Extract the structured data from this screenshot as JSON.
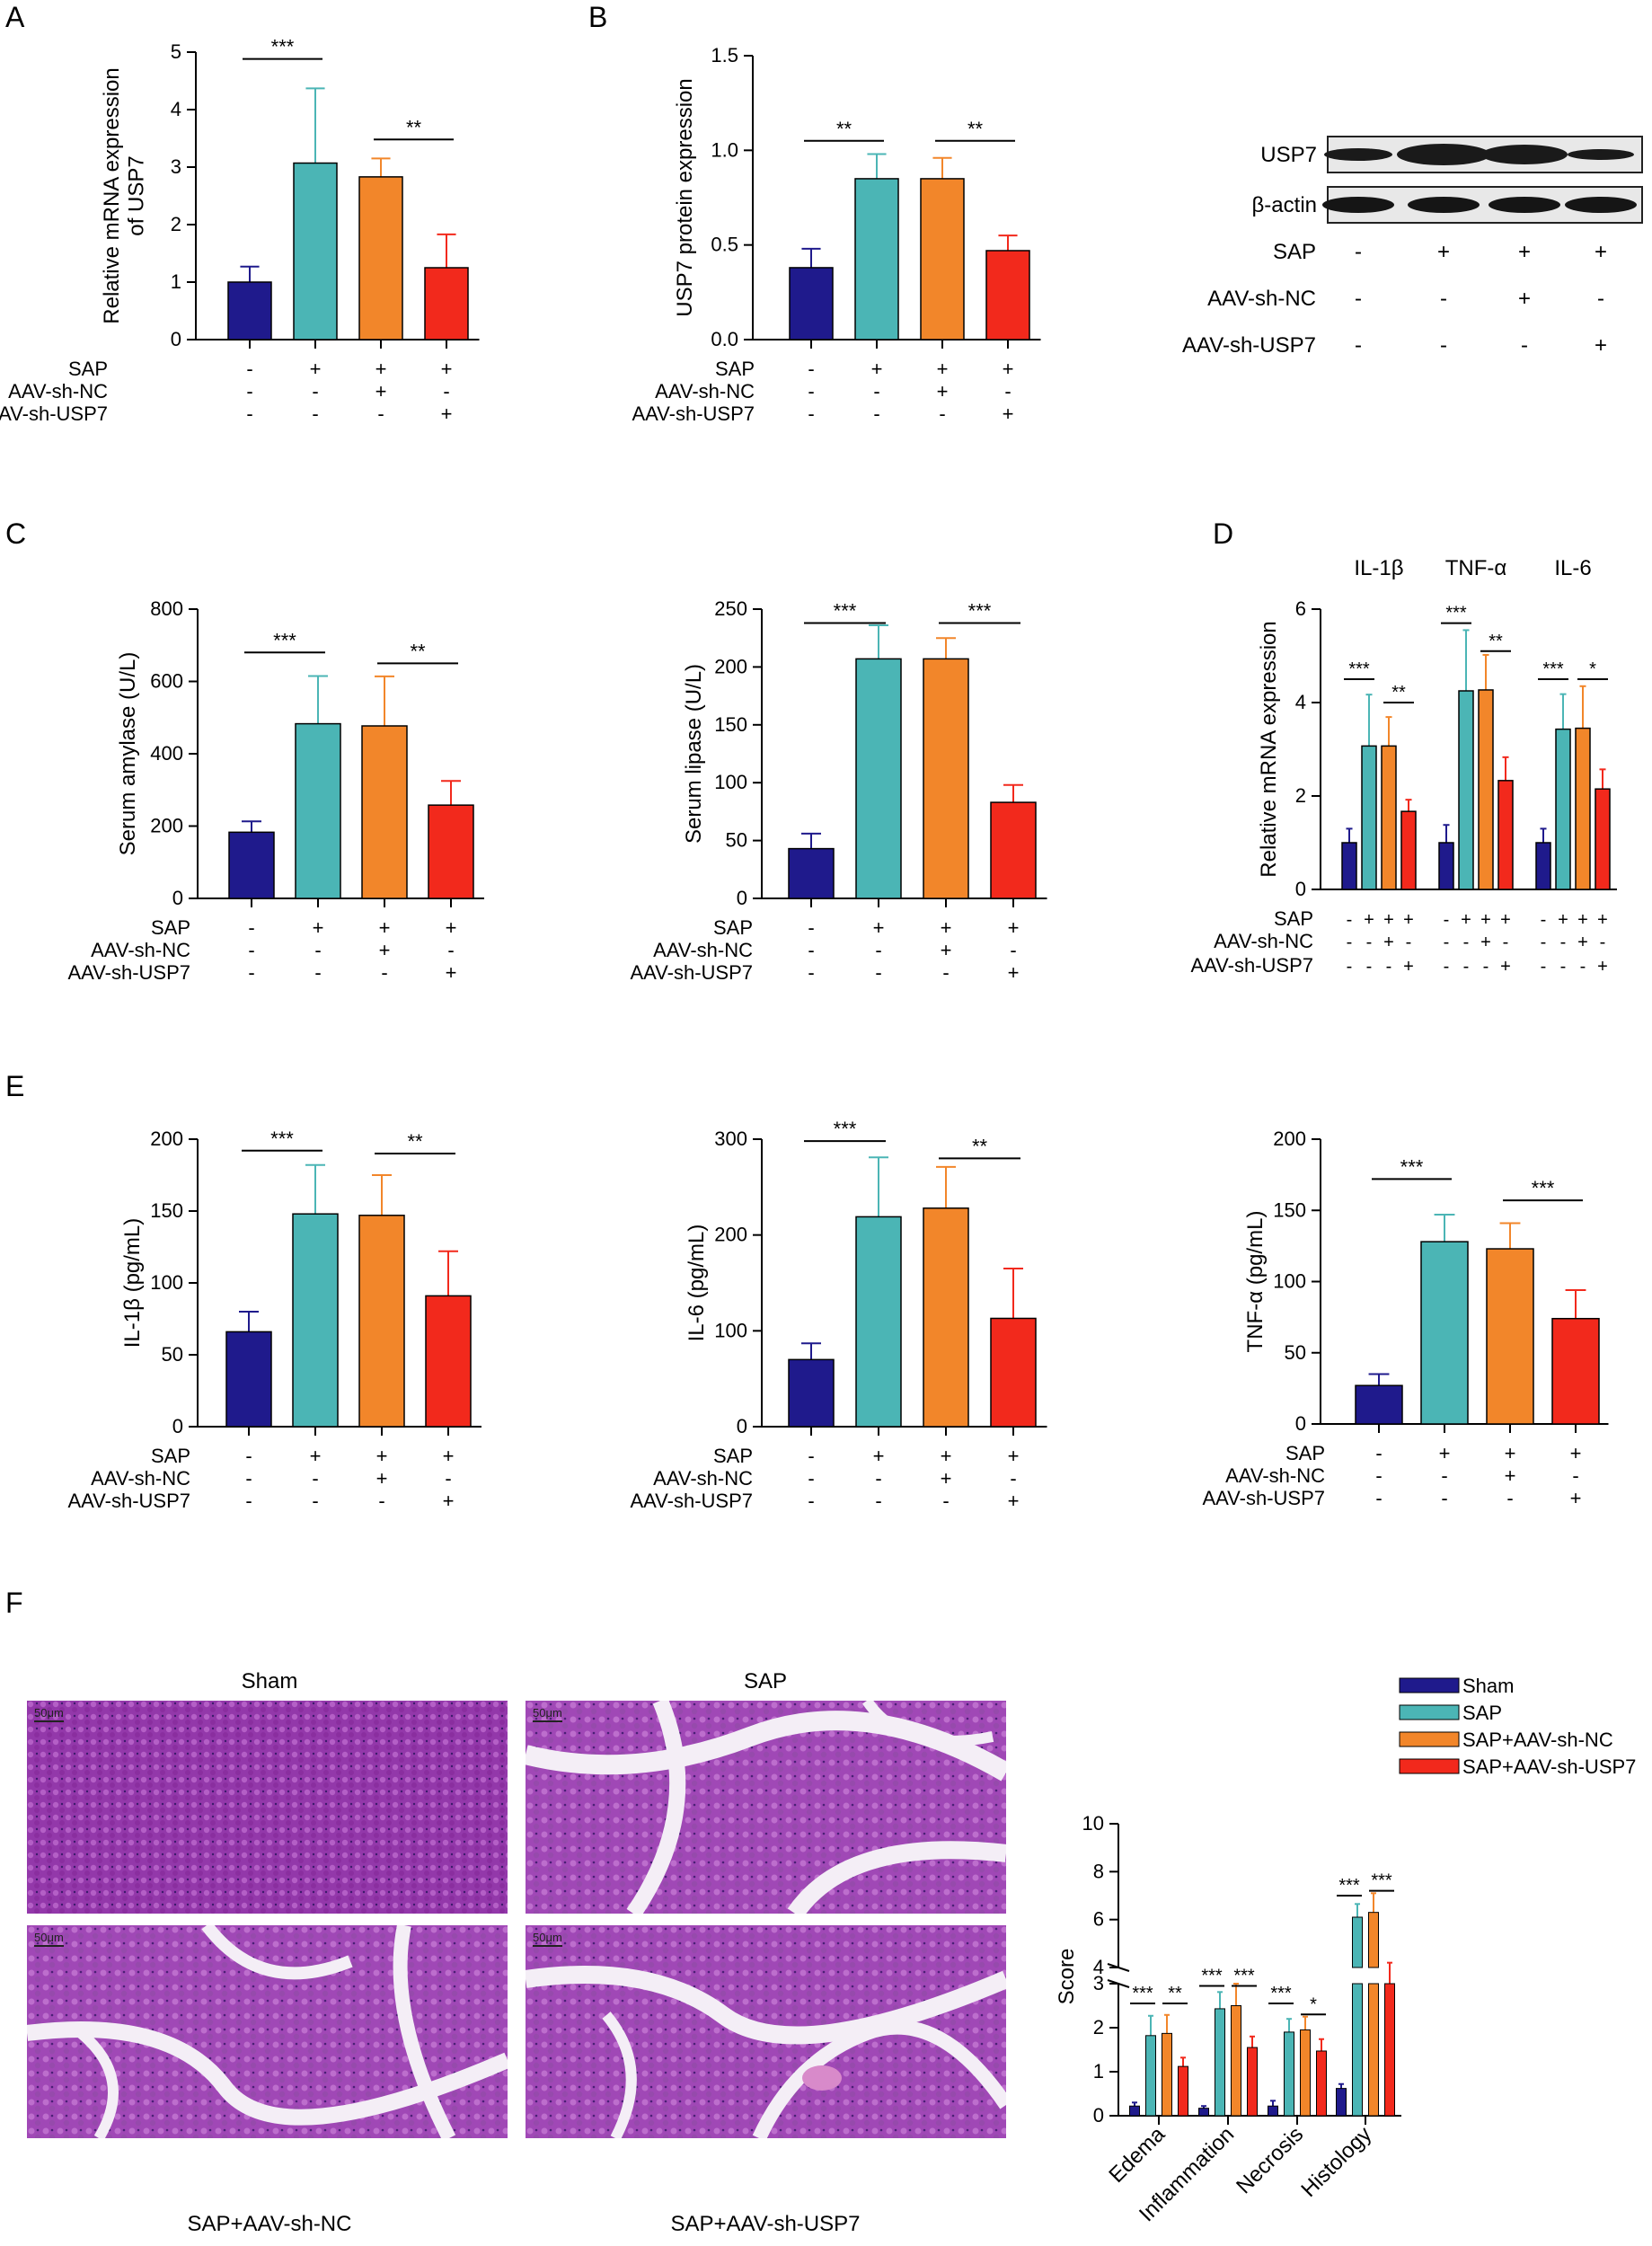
{
  "colors": {
    "sham": "#1f1a8c",
    "sap": "#4bb5b5",
    "nc": "#f2862a",
    "sh": "#f2291c"
  },
  "panel_letters": [
    "A",
    "B",
    "C",
    "D",
    "E",
    "F"
  ],
  "row_labels": {
    "sap": "SAP",
    "nc": "AAV-sh-NC",
    "sh": "AAV-sh-USP7"
  },
  "groups": [
    {
      "sap": "-",
      "nc": "-",
      "sh": "-"
    },
    {
      "sap": "+",
      "nc": "-",
      "sh": "-"
    },
    {
      "sap": "+",
      "nc": "+",
      "sh": "-"
    },
    {
      "sap": "+",
      "nc": "-",
      "sh": "+"
    }
  ],
  "western_blot": {
    "bands": [
      "USP7",
      "β-actin"
    ],
    "rows": [
      {
        "label": "SAP",
        "signs": [
          "-",
          "+",
          "+",
          "+"
        ]
      },
      {
        "label": "AAV-sh-NC",
        "signs": [
          "-",
          "-",
          "+",
          "-"
        ]
      },
      {
        "label": "AAV-sh-USP7",
        "signs": [
          "-",
          "-",
          "-",
          "+"
        ]
      }
    ]
  },
  "histology": {
    "labels": [
      "Sham",
      "SAP",
      "SAP+AAV-sh-NC",
      "SAP+AAV-sh-USP7"
    ],
    "scale": "50μm"
  },
  "legend": [
    "Sham",
    "SAP",
    "SAP+AAV-sh-NC",
    "SAP+AAV-sh-USP7"
  ],
  "chart_data": [
    {
      "id": "A",
      "type": "bar",
      "ylabel": "Relative mRNA expression of USP7",
      "ylim": [
        0,
        5
      ],
      "ticks": [
        0,
        1,
        2,
        3,
        4,
        5
      ],
      "tick_labels": [
        "0",
        "1",
        "2",
        "3",
        "4",
        "5"
      ],
      "values": [
        1.0,
        3.07,
        2.83,
        1.25
      ],
      "errors": [
        0.27,
        1.3,
        0.32,
        0.58
      ],
      "sig": [
        {
          "from": 0,
          "to": 1,
          "label": "***",
          "level": 4.88
        },
        {
          "from": 2,
          "to": 3,
          "label": "**",
          "level": 3.48
        }
      ]
    },
    {
      "id": "B",
      "type": "bar",
      "ylabel": "USP7 protein expression",
      "ylim": [
        0,
        1.5
      ],
      "ticks": [
        0,
        0.5,
        1.0,
        1.5
      ],
      "tick_labels": [
        "0.0",
        "0.5",
        "1.0",
        "1.5"
      ],
      "values": [
        0.38,
        0.85,
        0.85,
        0.47
      ],
      "errors": [
        0.1,
        0.13,
        0.11,
        0.08
      ],
      "sig": [
        {
          "from": 0,
          "to": 1,
          "label": "**",
          "level": 1.05
        },
        {
          "from": 2,
          "to": 3,
          "label": "**",
          "level": 1.05
        }
      ]
    },
    {
      "id": "C1",
      "type": "bar",
      "ylabel": "Serum amylase (U/L)",
      "ylim": [
        0,
        800
      ],
      "ticks": [
        0,
        200,
        400,
        600,
        800
      ],
      "tick_labels": [
        "0",
        "200",
        "400",
        "600",
        "800"
      ],
      "values": [
        183,
        483,
        477,
        258
      ],
      "errors": [
        30,
        132,
        137,
        67
      ],
      "sig": [
        {
          "from": 0,
          "to": 1,
          "label": "***",
          "level": 680
        },
        {
          "from": 2,
          "to": 3,
          "label": "**",
          "level": 650
        }
      ]
    },
    {
      "id": "C2",
      "type": "bar",
      "ylabel": "Serum lipase (U/L)",
      "ylim": [
        0,
        250
      ],
      "ticks": [
        0,
        50,
        100,
        150,
        200,
        250
      ],
      "tick_labels": [
        "0",
        "50",
        "100",
        "150",
        "200",
        "250"
      ],
      "values": [
        43,
        207,
        207,
        83
      ],
      "errors": [
        13,
        29,
        18,
        15
      ],
      "sig": [
        {
          "from": 0,
          "to": 1,
          "label": "***",
          "level": 238
        },
        {
          "from": 2,
          "to": 3,
          "label": "***",
          "level": 238
        }
      ]
    },
    {
      "id": "D",
      "type": "bar",
      "ylabel": "Relative mRNA expression",
      "ylim": [
        0,
        6
      ],
      "ticks": [
        0,
        2,
        4,
        6
      ],
      "tick_labels": [
        "0",
        "2",
        "4",
        "6"
      ],
      "categories": [
        "IL-1β",
        "TNF-α",
        "IL-6"
      ],
      "series": [
        {
          "name": "Sham",
          "values": [
            1.0,
            1.0,
            1.0
          ],
          "errors": [
            0.3,
            0.38,
            0.3
          ]
        },
        {
          "name": "SAP",
          "values": [
            3.07,
            4.25,
            3.43
          ],
          "errors": [
            1.1,
            1.3,
            0.75
          ]
        },
        {
          "name": "SAP+AAV-sh-NC",
          "values": [
            3.07,
            4.27,
            3.45
          ],
          "errors": [
            0.62,
            0.75,
            0.9
          ]
        },
        {
          "name": "SAP+AAV-sh-USP7",
          "values": [
            1.67,
            2.33,
            2.15
          ],
          "errors": [
            0.25,
            0.5,
            0.42
          ]
        }
      ],
      "sig": [
        {
          "cat": 0,
          "from": 0,
          "to": 1,
          "label": "***",
          "level": 4.5
        },
        {
          "cat": 0,
          "from": 2,
          "to": 3,
          "label": "**",
          "level": 4.0
        },
        {
          "cat": 1,
          "from": 0,
          "to": 1,
          "label": "***",
          "level": 5.7
        },
        {
          "cat": 1,
          "from": 2,
          "to": 3,
          "label": "**",
          "level": 5.1
        },
        {
          "cat": 2,
          "from": 0,
          "to": 1,
          "label": "***",
          "level": 4.5
        },
        {
          "cat": 2,
          "from": 2,
          "to": 3,
          "label": "*",
          "level": 4.5
        }
      ]
    },
    {
      "id": "E1",
      "type": "bar",
      "ylabel": "IL-1β (pg/mL)",
      "ylim": [
        0,
        200
      ],
      "ticks": [
        0,
        50,
        100,
        150,
        200
      ],
      "tick_labels": [
        "0",
        "50",
        "100",
        "150",
        "200"
      ],
      "values": [
        66,
        148,
        147,
        91
      ],
      "errors": [
        14,
        34,
        28,
        31
      ],
      "sig": [
        {
          "from": 0,
          "to": 1,
          "label": "***",
          "level": 192
        },
        {
          "from": 2,
          "to": 3,
          "label": "**",
          "level": 190
        }
      ]
    },
    {
      "id": "E2",
      "type": "bar",
      "ylabel": "IL-6 (pg/mL)",
      "ylim": [
        0,
        300
      ],
      "ticks": [
        0,
        100,
        200,
        300
      ],
      "tick_labels": [
        "0",
        "100",
        "200",
        "300"
      ],
      "values": [
        70,
        219,
        228,
        113
      ],
      "errors": [
        17,
        62,
        43,
        52
      ],
      "sig": [
        {
          "from": 0,
          "to": 1,
          "label": "***",
          "level": 298
        },
        {
          "from": 2,
          "to": 3,
          "label": "**",
          "level": 280
        }
      ]
    },
    {
      "id": "E3",
      "type": "bar",
      "ylabel": "TNF-α (pg/mL)",
      "ylim": [
        0,
        200
      ],
      "ticks": [
        0,
        50,
        100,
        150,
        200
      ],
      "tick_labels": [
        "0",
        "50",
        "100",
        "150",
        "200"
      ],
      "values": [
        27,
        128,
        123,
        74
      ],
      "errors": [
        8,
        19,
        18,
        20
      ],
      "sig": [
        {
          "from": 0,
          "to": 1,
          "label": "***",
          "level": 172
        },
        {
          "from": 2,
          "to": 3,
          "label": "***",
          "level": 157
        }
      ]
    },
    {
      "id": "F",
      "type": "bar",
      "ylabel": "Score",
      "axis_break": true,
      "lower_ticks": [
        0,
        1,
        2,
        3
      ],
      "upper_ticks": [
        4,
        6,
        8,
        10
      ],
      "categories": [
        "Edema",
        "Inflammation",
        "Necrosis",
        "Histology"
      ],
      "series": [
        {
          "name": "Sham",
          "values": [
            0.22,
            0.17,
            0.22,
            0.62
          ],
          "errors": [
            0.08,
            0.05,
            0.12,
            0.1
          ]
        },
        {
          "name": "SAP",
          "values": [
            1.82,
            2.43,
            1.9,
            6.1
          ],
          "errors": [
            0.45,
            0.38,
            0.3,
            0.55
          ]
        },
        {
          "name": "SAP+AAV-sh-NC",
          "values": [
            1.87,
            2.5,
            1.95,
            6.3
          ],
          "errors": [
            0.42,
            0.55,
            0.3,
            0.8
          ]
        },
        {
          "name": "SAP+AAV-sh-USP7",
          "values": [
            1.12,
            1.55,
            1.47,
            3.9
          ],
          "errors": [
            0.2,
            0.25,
            0.27,
            0.3
          ]
        }
      ],
      "sig": [
        {
          "cat": 0,
          "from": 0,
          "to": 1,
          "label": "***",
          "level": 2.55
        },
        {
          "cat": 0,
          "from": 2,
          "to": 3,
          "label": "**",
          "level": 2.55
        },
        {
          "cat": 1,
          "from": 0,
          "to": 1,
          "label": "***",
          "level": 2.95
        },
        {
          "cat": 1,
          "from": 2,
          "to": 3,
          "label": "***",
          "level": 2.95
        },
        {
          "cat": 2,
          "from": 0,
          "to": 1,
          "label": "***",
          "level": 2.55
        },
        {
          "cat": 2,
          "from": 2,
          "to": 3,
          "label": "*",
          "level": 2.3
        },
        {
          "cat": 3,
          "from": 0,
          "to": 1,
          "label": "***",
          "level": 7.0
        },
        {
          "cat": 3,
          "from": 2,
          "to": 3,
          "label": "***",
          "level": 7.2
        }
      ]
    }
  ]
}
